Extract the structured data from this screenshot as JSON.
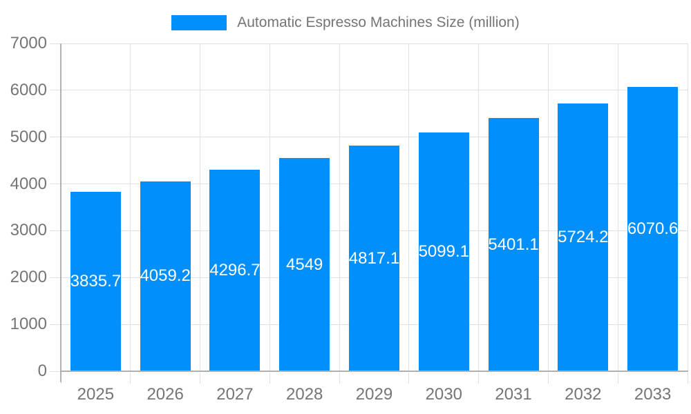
{
  "chart_data": {
    "type": "bar",
    "title": "",
    "legend": "Automatic Espresso Machines Size (million)",
    "legend_position": "top",
    "categories": [
      "2025",
      "2026",
      "2027",
      "2028",
      "2029",
      "2030",
      "2031",
      "2032",
      "2033"
    ],
    "values": [
      3835.7,
      4059.2,
      4296.7,
      4549,
      4817.1,
      5099.1,
      5401.1,
      5724.2,
      6070.6
    ],
    "value_labels": [
      "3835.7",
      "4059.2",
      "4296.7",
      "4549",
      "4817.1",
      "5099.1",
      "5401.1",
      "5724.2",
      "6070.6"
    ],
    "xlabel": "",
    "ylabel": "",
    "ylim": [
      0,
      7000
    ],
    "yticks": [
      0,
      1000,
      2000,
      3000,
      4000,
      5000,
      6000,
      7000
    ],
    "ytick_labels": [
      "0",
      "1000",
      "2000",
      "3000",
      "4000",
      "5000",
      "6000",
      "7000"
    ],
    "grid": true,
    "bar_color": "#008FFB",
    "grid_color": "#e0e0e0",
    "axis_color": "#b0b0b0",
    "label_color": "#757575",
    "legend_text_color": "#757575",
    "data_label_color": "#ffffff"
  }
}
